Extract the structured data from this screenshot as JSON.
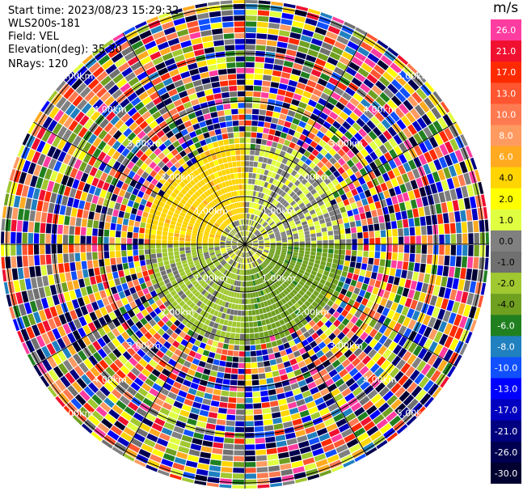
{
  "header": {
    "start_time": "Start time: 2023/08/23 15:29:32",
    "instrument": "WLS200s-181",
    "field": "Field: VEL",
    "elevation": "Elevation(deg): 35.30",
    "nrays": "NRays: 120"
  },
  "colorbar": {
    "unit": "m/s",
    "labels": [
      "26.0",
      "21.0",
      "17.0",
      "13.0",
      "10.0",
      "8.0",
      "6.0",
      "4.0",
      "2.0",
      "1.0",
      "0.0",
      "-1.0",
      "-2.0",
      "-4.0",
      "-6.0",
      "-8.0",
      "-10.0",
      "-13.0",
      "-17.0",
      "-21.0",
      "-26.0",
      "-30.0"
    ],
    "colors": [
      "#ff3ca0",
      "#f01030",
      "#ff2a00",
      "#ff5530",
      "#ff7a50",
      "#ff9a60",
      "#ffaa20",
      "#ffd400",
      "#ffff00",
      "#e0ff40",
      "#808080",
      "#707070",
      "#a0c830",
      "#70a020",
      "#208020",
      "#2080c0",
      "#1050ff",
      "#0000ff",
      "#0000c0",
      "#000080",
      "#000050",
      "#000030"
    ]
  },
  "chart_data": {
    "type": "heatmap",
    "title": "",
    "description_type": "polar PPI velocity scan",
    "nrays": 120,
    "range_ring_labels": [
      "1.00km",
      "2.00km",
      "3.00km",
      "4.00km",
      "5.00km"
    ],
    "clean_region_radius_km": 2.1,
    "sectors": [
      {
        "name": "north-west",
        "dominant": "positive",
        "approx_m_s": 3.0
      },
      {
        "name": "north-east",
        "dominant": "near-zero",
        "approx_m_s": 0.0
      },
      {
        "name": "south-east",
        "dominant": "negative",
        "approx_m_s": -5.0
      },
      {
        "name": "south-west",
        "dominant": "negative",
        "approx_m_s": -2.5
      }
    ]
  }
}
